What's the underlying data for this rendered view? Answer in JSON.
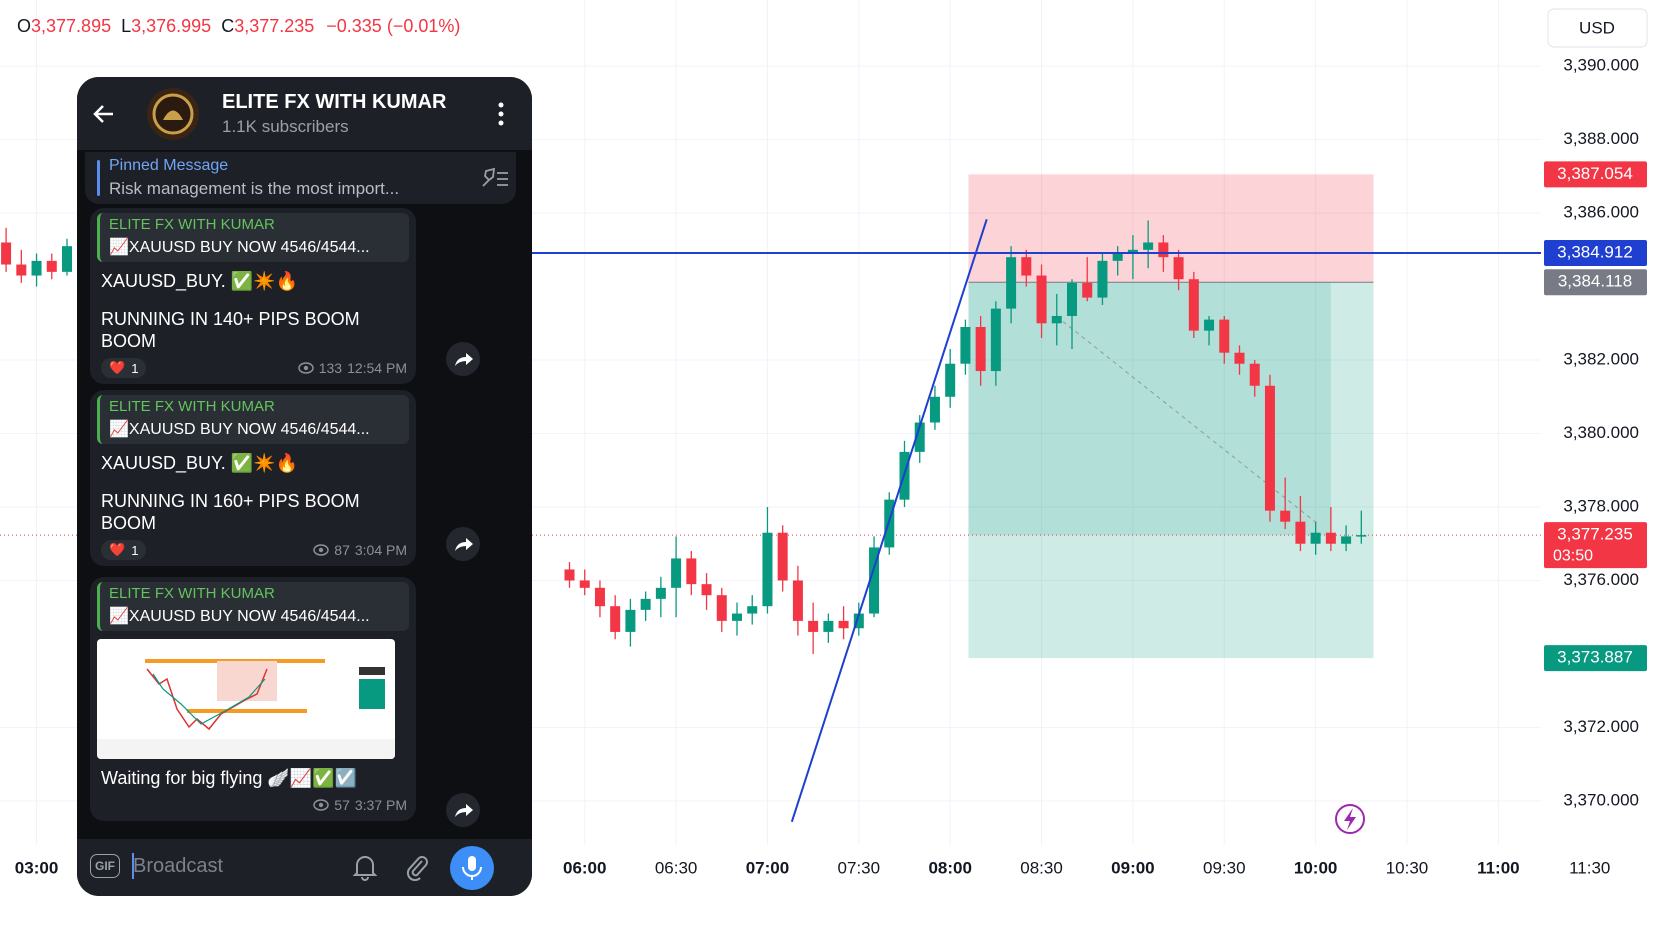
{
  "header": {
    "ohlc": [
      {
        "key": "O",
        "value": "3,377.895"
      },
      {
        "key": "L",
        "value": "3,376.995"
      },
      {
        "key": "C",
        "value": "3,377.235"
      }
    ],
    "change": "−0.335 (−0.01%)"
  },
  "currency": "USD",
  "chart_data": {
    "type": "candlestick",
    "x": [
      170,
      175,
      180,
      185,
      190,
      355,
      360,
      365,
      370,
      375,
      380,
      385,
      390,
      395,
      400,
      405,
      410,
      415,
      420,
      425,
      430,
      435,
      440,
      445,
      450,
      455,
      460,
      465,
      470,
      475,
      480,
      485,
      490,
      495,
      500,
      505,
      510,
      515,
      520,
      525,
      530,
      535,
      540,
      545,
      550,
      555,
      560,
      565,
      570,
      575,
      580,
      585,
      590,
      595,
      600,
      605,
      610,
      615
    ],
    "open": [
      3385.2,
      3384.6,
      3384.3,
      3384.7,
      3384.4,
      3376.3,
      3376.0,
      3375.8,
      3375.3,
      3374.6,
      3375.2,
      3375.5,
      3375.8,
      3376.6,
      3375.9,
      3375.6,
      3374.9,
      3375.1,
      3375.3,
      3377.3,
      3376.0,
      3374.9,
      3374.6,
      3374.9,
      3374.7,
      3375.1,
      3376.9,
      3378.2,
      3379.5,
      3380.3,
      3381.0,
      3381.9,
      3382.9,
      3381.7,
      3383.4,
      3384.8,
      3384.3,
      3383.0,
      3383.2,
      3384.1,
      3383.7,
      3384.7,
      3384.9,
      3385.0,
      3385.2,
      3384.8,
      3384.2,
      3382.8,
      3383.1,
      3382.2,
      3381.9,
      3381.3,
      3377.9,
      3377.6,
      3377.0,
      3377.3,
      3377.0,
      3377.2
    ],
    "high": [
      3385.6,
      3385.0,
      3384.9,
      3384.9,
      3385.3,
      3376.5,
      3376.3,
      3376.0,
      3375.6,
      3375.5,
      3375.7,
      3376.1,
      3377.2,
      3376.8,
      3376.2,
      3375.8,
      3375.4,
      3375.6,
      3378.0,
      3377.5,
      3376.4,
      3375.4,
      3375.1,
      3375.3,
      3375.4,
      3377.2,
      3378.4,
      3379.8,
      3380.5,
      3381.3,
      3382.3,
      3383.1,
      3383.2,
      3383.6,
      3385.1,
      3385.0,
      3384.6,
      3383.8,
      3384.2,
      3384.8,
      3384.9,
      3385.1,
      3385.4,
      3385.8,
      3385.4,
      3385.0,
      3384.4,
      3383.2,
      3383.2,
      3382.4,
      3382.0,
      3381.6,
      3378.8,
      3378.3,
      3377.6,
      3378.0,
      3377.5,
      3377.9
    ],
    "low": [
      3384.4,
      3384.1,
      3384.0,
      3384.2,
      3384.3,
      3375.8,
      3375.6,
      3375.0,
      3374.4,
      3374.2,
      3374.9,
      3375.0,
      3375.0,
      3375.6,
      3375.2,
      3374.6,
      3374.5,
      3374.8,
      3375.1,
      3375.7,
      3374.5,
      3374.0,
      3374.3,
      3374.4,
      3374.5,
      3375.0,
      3376.7,
      3378.0,
      3379.2,
      3380.1,
      3380.7,
      3381.6,
      3381.3,
      3381.3,
      3383.0,
      3384.0,
      3382.6,
      3382.4,
      3382.3,
      3383.6,
      3383.5,
      3384.3,
      3384.2,
      3384.5,
      3384.4,
      3383.9,
      3382.6,
      3382.4,
      3381.9,
      3381.6,
      3381.0,
      3377.6,
      3377.4,
      3376.8,
      3376.7,
      3376.8,
      3376.8,
      3377.0
    ],
    "close": [
      3384.6,
      3384.3,
      3384.7,
      3384.4,
      3385.1,
      3376.0,
      3375.8,
      3375.3,
      3374.6,
      3375.2,
      3375.5,
      3375.8,
      3376.6,
      3375.9,
      3375.6,
      3374.9,
      3375.1,
      3375.3,
      3377.3,
      3376.0,
      3374.9,
      3374.6,
      3374.9,
      3374.7,
      3375.1,
      3376.9,
      3378.2,
      3379.5,
      3380.3,
      3381.0,
      3381.9,
      3382.9,
      3381.7,
      3383.4,
      3384.8,
      3384.3,
      3383.0,
      3383.2,
      3384.1,
      3383.7,
      3384.7,
      3384.9,
      3385.0,
      3385.2,
      3384.8,
      3384.2,
      3382.8,
      3383.1,
      3382.2,
      3381.9,
      3381.3,
      3377.9,
      3377.6,
      3377.0,
      3377.3,
      3377.0,
      3377.2,
      3377.235
    ],
    "up_color": "#089981",
    "down_color": "#f23645",
    "xlim": [
      168,
      674
    ],
    "ylim": [
      3368.8,
      3391.8
    ],
    "xticks": [
      {
        "value": 180,
        "label": "03:00"
      },
      {
        "value": 360,
        "label": "06:00"
      },
      {
        "value": 390,
        "label": "06:30"
      },
      {
        "value": 420,
        "label": "07:00"
      },
      {
        "value": 450,
        "label": "07:30"
      },
      {
        "value": 480,
        "label": "08:00"
      },
      {
        "value": 510,
        "label": "08:30"
      },
      {
        "value": 540,
        "label": "09:00"
      },
      {
        "value": 570,
        "label": "09:30"
      },
      {
        "value": 600,
        "label": "10:00"
      },
      {
        "value": 630,
        "label": "10:30"
      },
      {
        "value": 660,
        "label": "11:00"
      },
      {
        "value": 690,
        "label": "11:30"
      }
    ],
    "yticks": [
      {
        "value": 3370,
        "label": "3,370.000"
      },
      {
        "value": 3372,
        "label": "3,372.000"
      },
      {
        "value": 3376,
        "label": "3,376.000"
      },
      {
        "value": 3378,
        "label": "3,378.000"
      },
      {
        "value": 3380,
        "label": "3,380.000"
      },
      {
        "value": 3382,
        "label": "3,382.000"
      },
      {
        "value": 3386,
        "label": "3,386.000"
      },
      {
        "value": 3388,
        "label": "3,388.000"
      },
      {
        "value": 3390,
        "label": "3,390.000"
      }
    ],
    "grid": true,
    "price_tags": [
      {
        "value": 3387.054,
        "label": "3,387.054",
        "color": "#f23645"
      },
      {
        "value": 3384.912,
        "label": "3,384.912",
        "color": "#1e3fd0"
      },
      {
        "value": 3384.118,
        "label": "3,384.118",
        "color": "#787b86"
      },
      {
        "value": 3377.235,
        "label": "3,377.235",
        "color": "#f23645",
        "countdown": "03:50"
      },
      {
        "value": 3373.887,
        "label": "3,373.887",
        "color": "#089981"
      }
    ],
    "position": {
      "stop": 3387.054,
      "entry": 3384.118,
      "target": 3373.887,
      "x": [
        486,
        619
      ],
      "fill_to": [
        605,
        3377.235
      ]
    },
    "hline": {
      "value": 3384.912,
      "from": 342,
      "color": "#1e3fd0"
    },
    "trendline": {
      "x": [
        428,
        492
      ],
      "y": [
        3369.43,
        3385.83
      ],
      "color": "#1e3fd0"
    },
    "dashed_line": {
      "x": [
        517,
        601
      ],
      "y": [
        3383.05,
        3377.52
      ]
    },
    "current_price": 3377.235
  },
  "telegram": {
    "channel": "ELITE FX WITH KUMAR",
    "subscribers": "1.1K subscribers",
    "pinned": {
      "title": "Pinned Message",
      "text": "Risk management is the most import..."
    },
    "messages": [
      {
        "reply_name": "ELITE FX WITH KUMAR",
        "reply_text": "📈XAUUSD BUY NOW 4546/4544...",
        "lines": [
          "XAUUSD_BUY.   ✅✴️🔥",
          "RUNNING IN 140+ PIPS BOOM BOOM"
        ],
        "reaction": "❤️",
        "reaction_count": "1",
        "views": "133",
        "time": "12:54 PM"
      },
      {
        "reply_name": "ELITE FX WITH KUMAR",
        "reply_text": "📈XAUUSD BUY NOW 4546/4544...",
        "lines": [
          "XAUUSD_BUY.  ✅✴️🔥",
          "RUNNING IN 160+ PIPS BOOM BOOM"
        ],
        "reaction": "❤️",
        "reaction_count": "1",
        "views": "87",
        "time": "3:04 PM"
      },
      {
        "reply_name": "ELITE FX WITH KUMAR",
        "reply_text": "📈XAUUSD BUY NOW 4546/4544...",
        "image": true,
        "lines": [
          "Waiting for big  flying 🪽📈✅☑️"
        ],
        "views": "57",
        "time": "3:37 PM"
      }
    ],
    "input_placeholder": "Broadcast",
    "gif": "GIF"
  }
}
